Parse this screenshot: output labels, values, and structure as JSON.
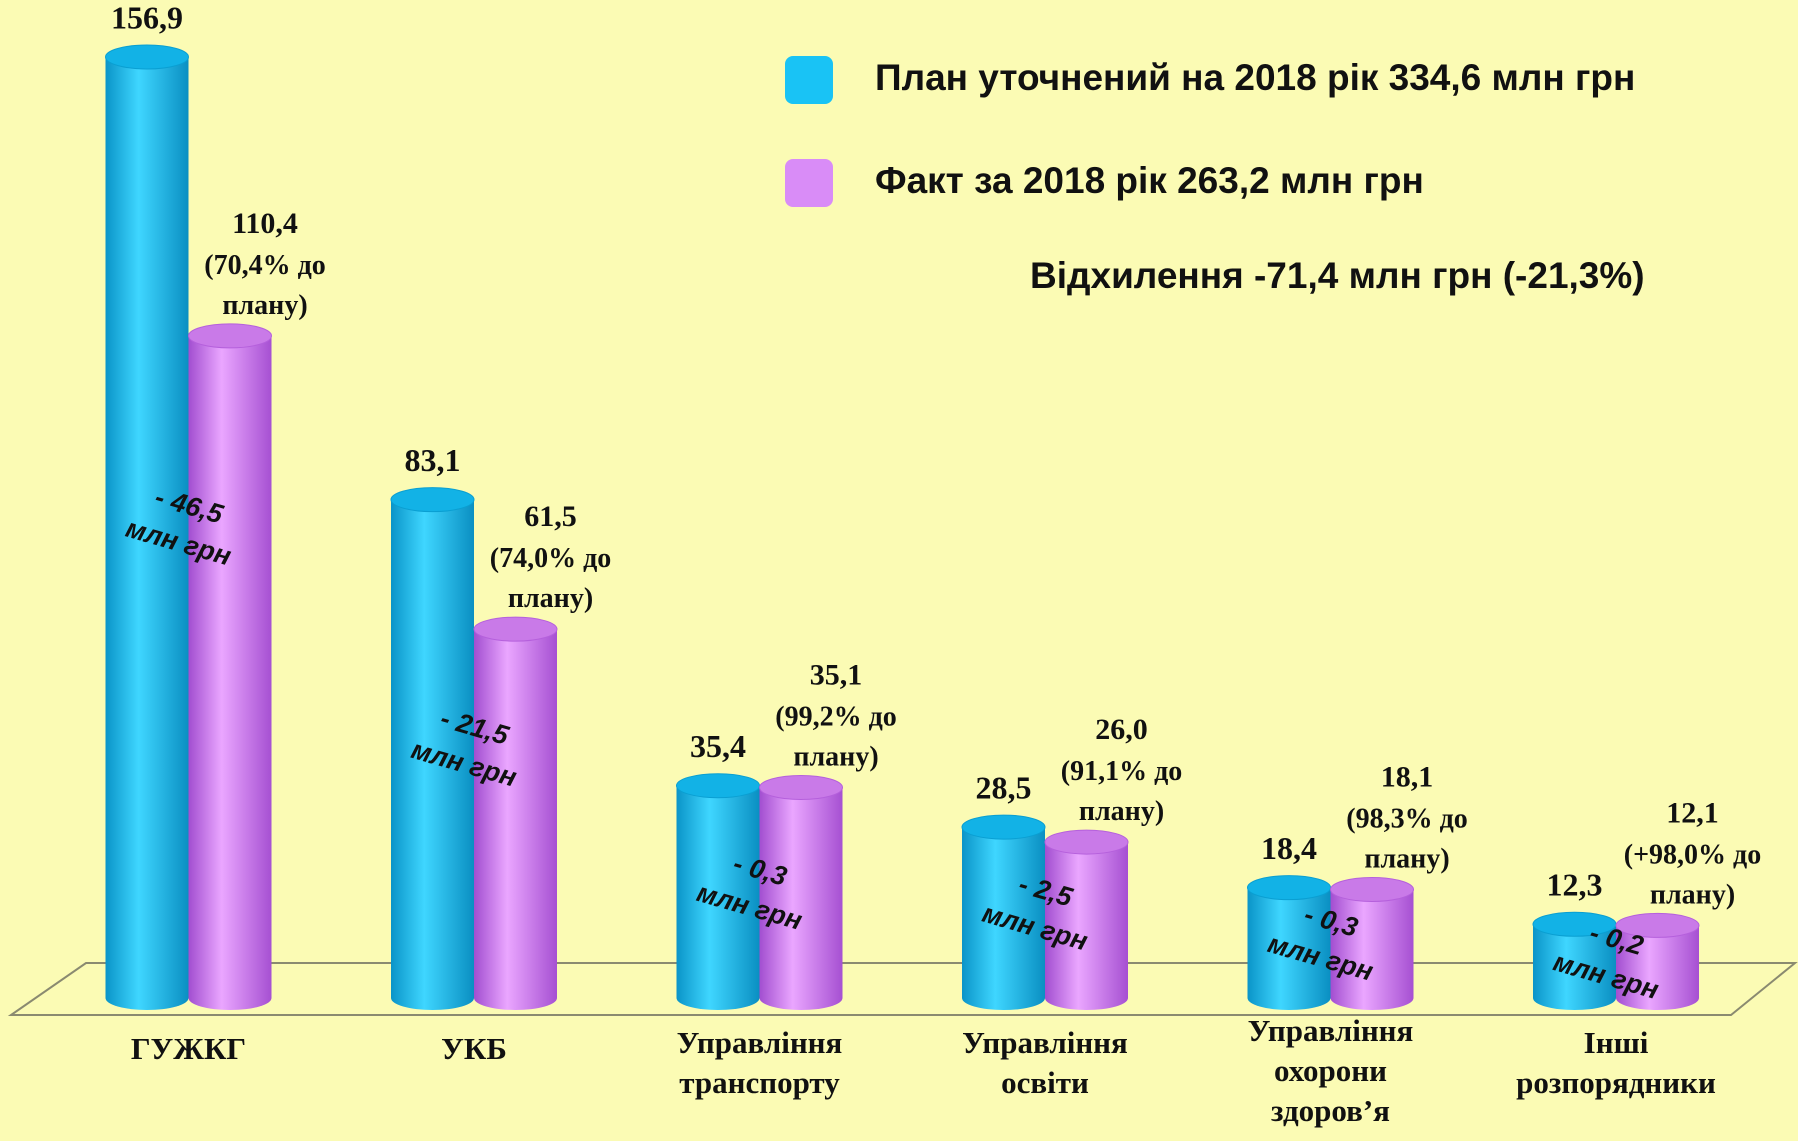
{
  "chart_data": {
    "type": "bar",
    "categories": [
      "ГУЖКГ",
      "УКБ",
      "Управління транспорту",
      "Управління освіти",
      "Управління охорони здоров’я",
      "Інші розпорядники"
    ],
    "series": [
      {
        "name": "План уточнений на 2018 рік  334,6 млн грн",
        "color": "#19c3f5",
        "values": [
          156.9,
          83.1,
          35.4,
          28.5,
          18.4,
          12.3
        ],
        "value_labels": [
          "156,9",
          "83,1",
          "35,4",
          "28,5",
          "18,4",
          "12,3"
        ]
      },
      {
        "name": "Факт за 2018 рік  263,2 млн грн",
        "color": "#d98cf7",
        "values": [
          110.4,
          61.5,
          35.1,
          26.0,
          18.1,
          12.1
        ],
        "value_labels": [
          "110,4",
          "61,5",
          "35,1",
          "26,0",
          "18,1",
          "12,1"
        ],
        "percent_labels": [
          "(70,4% до плану)",
          "(74,0% до плану)",
          "(99,2% до плану)",
          "(91,1% до плану)",
          "(98,3% до плану)",
          "(+98,0% до плану)"
        ]
      }
    ],
    "deviation_labels": [
      "- 46,5 млн грн",
      "- 21,5 млн грн",
      "- 0,3 млн грн",
      "- 2,5 млн грн",
      "- 0,3 млн грн",
      "- 0,2 млн грн"
    ],
    "summary": "Відхилення  -71,4 млн грн (-21,3%)",
    "legend": "top-right"
  }
}
